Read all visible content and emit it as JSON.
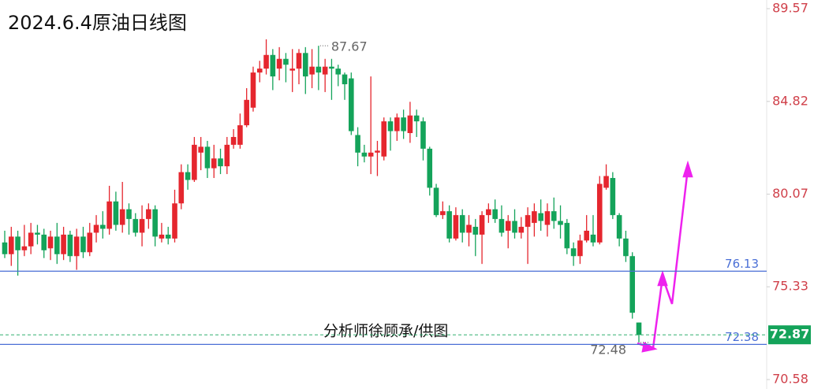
{
  "chart_data": {
    "type": "candlestick",
    "title": "2024.6.4原油日线图",
    "subtitle": "分析师徐顾承/供图",
    "up_color": "#e5262e",
    "down_color": "#14a35a",
    "ylim": [
      70.58,
      89.57
    ],
    "yticks": [
      89.57,
      84.82,
      80.07,
      75.33,
      70.58
    ],
    "levels": [
      {
        "value": 76.13,
        "color": "#4a6fd6"
      },
      {
        "value": 72.38,
        "color": "#4a6fd6"
      }
    ],
    "last_price": 72.87,
    "annotations": [
      {
        "value": 87.67,
        "index": 48
      },
      {
        "value": 72.48,
        "index": 97
      }
    ],
    "open": [
      77.6,
      77.0,
      77.9,
      77.2,
      77.4,
      78.1,
      78.0,
      77.3,
      77.9,
      77.0,
      78.0,
      76.9,
      77.9,
      77.1,
      78.1,
      78.5,
      78.3,
      79.7,
      78.5,
      79.3,
      78.8,
      78.1,
      78.8,
      79.3,
      77.8,
      78.0,
      77.8,
      79.6,
      81.2,
      80.8,
      82.2,
      82.5,
      81.4,
      81.9,
      81.5,
      82.6,
      82.6,
      83.6,
      84.5,
      86.3,
      86.5,
      87.2,
      86.5,
      87.0,
      86.4,
      86.5,
      87.3,
      86.2,
      86.6,
      86.2,
      86.6,
      86.5,
      86.2,
      86.0,
      83.1,
      82.2,
      82.0,
      82.2,
      82.0,
      83.8,
      83.3,
      84.0,
      83.2,
      84.1,
      83.8,
      82.4,
      80.4,
      79.0,
      79.2,
      77.8,
      79.0,
      78.1,
      78.4,
      78.0,
      79.0,
      79.3,
      78.8,
      78.2,
      78.7,
      78.1,
      78.4,
      78.6,
      79.1,
      78.5,
      79.2,
      78.7,
      78.6,
      77.3,
      76.9,
      77.7,
      78.0,
      77.6,
      80.4,
      80.9,
      79.0,
      77.8,
      76.9,
      73.5
    ],
    "high": [
      78.2,
      78.4,
      78.2,
      78.5,
      78.6,
      78.5,
      78.3,
      78.2,
      78.6,
      78.4,
      78.2,
      78.3,
      78.4,
      78.6,
      79.0,
      79.2,
      80.5,
      80.2,
      80.7,
      79.6,
      79.1,
      79.5,
      79.6,
      79.5,
      78.6,
      78.4,
      80.3,
      81.6,
      81.6,
      83.0,
      83.0,
      82.8,
      82.6,
      82.4,
      83.0,
      83.4,
      84.2,
      85.5,
      86.6,
      86.9,
      88.0,
      87.5,
      87.6,
      87.3,
      87.5,
      87.5,
      87.6,
      87.5,
      87.67,
      87.0,
      87.0,
      86.7,
      86.3,
      86.3,
      83.5,
      82.6,
      86.1,
      82.8,
      84.0,
      84.0,
      84.2,
      84.4,
      84.8,
      84.4,
      84.0,
      82.5,
      80.6,
      79.7,
      79.5,
      79.4,
      79.3,
      79.0,
      78.8,
      79.2,
      79.6,
      79.8,
      79.5,
      79.0,
      79.3,
      78.9,
      79.4,
      79.6,
      79.8,
      79.6,
      79.9,
      79.5,
      78.8,
      77.6,
      78.0,
      79.0,
      79.0,
      81.0,
      81.6,
      81.2,
      79.1,
      78.2,
      77.1,
      73.5
    ],
    "low": [
      76.8,
      76.4,
      75.9,
      76.9,
      77.0,
      77.5,
      76.8,
      76.7,
      76.5,
      76.7,
      76.6,
      76.2,
      76.8,
      76.9,
      77.6,
      77.8,
      78.0,
      78.2,
      78.1,
      78.0,
      77.9,
      77.4,
      78.3,
      77.4,
      77.6,
      77.5,
      77.6,
      79.3,
      80.3,
      80.7,
      81.3,
      80.9,
      80.9,
      81.1,
      81.1,
      82.4,
      82.4,
      83.5,
      84.3,
      85.8,
      86.2,
      85.4,
      85.9,
      85.8,
      85.3,
      85.7,
      85.2,
      85.5,
      85.4,
      85.3,
      84.9,
      85.6,
      84.9,
      83.1,
      81.5,
      81.7,
      81.1,
      81.0,
      81.8,
      82.3,
      82.8,
      82.9,
      82.7,
      83.0,
      81.8,
      80.0,
      78.9,
      78.8,
      77.6,
      77.7,
      77.6,
      77.4,
      76.9,
      76.5,
      78.6,
      78.6,
      77.9,
      77.3,
      77.8,
      77.8,
      76.5,
      77.9,
      78.2,
      77.9,
      78.3,
      77.8,
      77.0,
      76.4,
      76.5,
      77.6,
      77.4,
      77.5,
      80.3,
      78.8,
      77.4,
      76.6,
      73.7,
      72.48
    ],
    "close": [
      77.0,
      77.9,
      77.2,
      77.4,
      78.1,
      78.0,
      77.2,
      77.9,
      77.0,
      78.0,
      76.9,
      77.9,
      77.1,
      78.1,
      78.5,
      78.3,
      79.7,
      78.5,
      79.3,
      78.8,
      78.1,
      78.8,
      79.3,
      77.9,
      78.0,
      77.8,
      79.6,
      81.2,
      80.8,
      82.6,
      82.5,
      81.4,
      81.9,
      81.5,
      82.6,
      83.0,
      83.6,
      84.9,
      86.3,
      86.5,
      87.2,
      86.1,
      87.0,
      86.7,
      86.5,
      87.3,
      86.1,
      86.6,
      86.3,
      86.6,
      86.5,
      86.2,
      85.7,
      83.3,
      82.2,
      82.0,
      82.2,
      82.3,
      83.8,
      83.3,
      84.0,
      83.3,
      84.1,
      83.8,
      82.4,
      80.4,
      79.0,
      79.2,
      77.8,
      79.0,
      78.1,
      78.5,
      78.0,
      79.0,
      79.3,
      78.8,
      78.1,
      78.7,
      78.1,
      78.4,
      79.0,
      79.2,
      78.7,
      79.2,
      78.7,
      78.5,
      77.3,
      76.9,
      77.7,
      78.2,
      77.6,
      80.6,
      81.0,
      79.0,
      77.8,
      76.9,
      74.0,
      72.87
    ]
  }
}
